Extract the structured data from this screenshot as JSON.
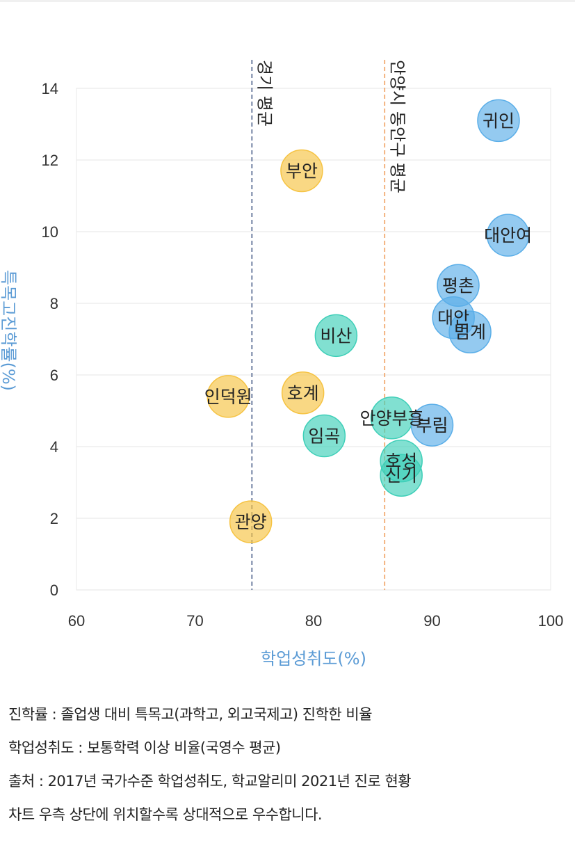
{
  "chart_data": {
    "type": "scatter",
    "xlabel": "학업성취도(%)",
    "ylabel": "특목고진학률(%)",
    "xlim": [
      60,
      100
    ],
    "ylim": [
      0,
      14
    ],
    "xticks": [
      60,
      70,
      80,
      90,
      100
    ],
    "yticks": [
      0,
      2,
      4,
      6,
      8,
      10,
      12,
      14
    ],
    "grid": true,
    "reference_lines": [
      {
        "label": "경기 평균",
        "x": 74.8,
        "color": "#4a5f8a"
      },
      {
        "label": "안양시 동안구 평균",
        "x": 86,
        "color": "#f0a060"
      }
    ],
    "series": [
      {
        "color": "#f6c342",
        "points": [
          {
            "label": "부안",
            "x": 79,
            "y": 11.7
          },
          {
            "label": "인덕원",
            "x": 72.8,
            "y": 5.4
          },
          {
            "label": "호계",
            "x": 79.1,
            "y": 5.5
          },
          {
            "label": "관양",
            "x": 74.7,
            "y": 1.9
          }
        ]
      },
      {
        "color": "#3ecfb8",
        "points": [
          {
            "label": "비산",
            "x": 81.9,
            "y": 7.1
          },
          {
            "label": "임곡",
            "x": 80.9,
            "y": 4.3
          },
          {
            "label": "안양부흥",
            "x": 86.6,
            "y": 4.8
          },
          {
            "label": "호성",
            "x": 87.4,
            "y": 3.6
          },
          {
            "label": "신기",
            "x": 87.4,
            "y": 3.2
          }
        ]
      },
      {
        "color": "#5aaee8",
        "points": [
          {
            "label": "귀인",
            "x": 95.6,
            "y": 13.1
          },
          {
            "label": "대안여",
            "x": 96.4,
            "y": 9.9
          },
          {
            "label": "평촌",
            "x": 92.2,
            "y": 8.5
          },
          {
            "label": "대안",
            "x": 91.8,
            "y": 7.6
          },
          {
            "label": "범계",
            "x": 93.2,
            "y": 7.2
          },
          {
            "label": "부림",
            "x": 90,
            "y": 4.6
          }
        ]
      }
    ]
  },
  "notes": [
    "진학률 : 졸업생 대비 특목고(과학고, 외고국제고) 진학한 비율",
    "학업성취도 : 보통학력 이상 비율(국영수 평균)",
    "출처 : 2017년 국가수준 학업성취도, 학교알리미 2021년 진로 현황",
    "차트 우측 상단에 위치할수록 상대적으로 우수합니다."
  ]
}
